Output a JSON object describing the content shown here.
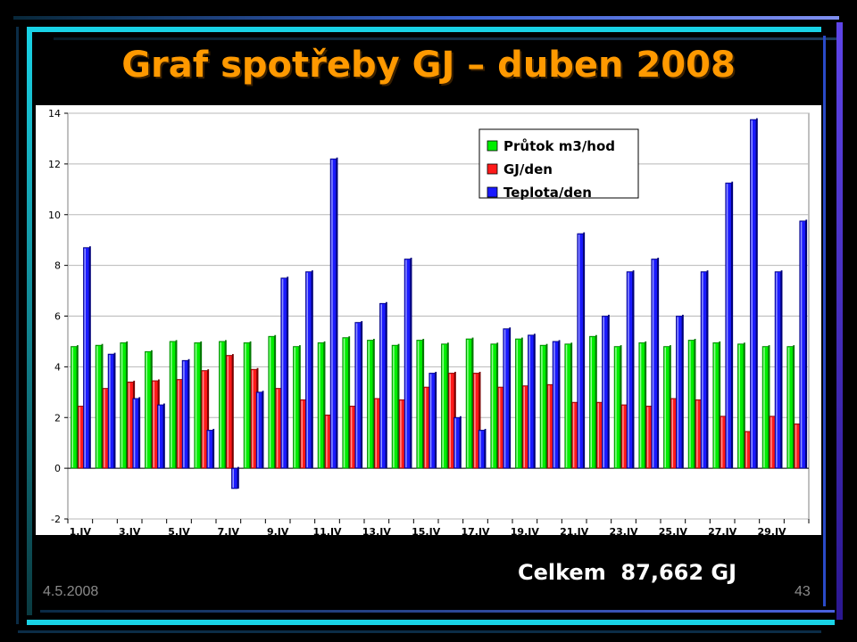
{
  "slide": {
    "title": "Graf spotřeby GJ – duben 2008",
    "total": "Celkem  87,662 GJ",
    "date": "4.5.2008",
    "page_number": "43"
  },
  "chart_data": {
    "type": "bar",
    "ylim": [
      -2,
      14
    ],
    "yticks": [
      -2,
      0,
      2,
      4,
      6,
      8,
      10,
      12,
      14
    ],
    "grid": true,
    "legend_position": "top-right",
    "x_tick_labels": [
      "1.IV",
      "3.IV",
      "5.IV",
      "7.IV",
      "9.IV",
      "11.IV",
      "13.IV",
      "15.IV",
      "17.IV",
      "19.IV",
      "21.IV",
      "23.IV",
      "25.IV",
      "27.IV",
      "29.IV"
    ],
    "categories": [
      "1.IV",
      "2.IV",
      "3.IV",
      "4.IV",
      "5.IV",
      "6.IV",
      "7.IV",
      "8.IV",
      "9.IV",
      "10.IV",
      "11.IV",
      "12.IV",
      "13.IV",
      "14.IV",
      "15.IV",
      "16.IV",
      "17.IV",
      "18.IV",
      "19.IV",
      "20.IV",
      "21.IV",
      "22.IV",
      "23.IV",
      "24.IV",
      "25.IV",
      "26.IV",
      "27.IV",
      "28.IV",
      "29.IV",
      "30.IV"
    ],
    "series": [
      {
        "name": "Průtok m3/hod",
        "color": "#00ee00",
        "values": [
          4.8,
          4.85,
          4.95,
          4.6,
          5.0,
          4.95,
          5.0,
          4.95,
          5.2,
          4.8,
          4.95,
          5.15,
          5.05,
          4.85,
          5.05,
          4.9,
          5.1,
          4.9,
          5.1,
          4.85,
          4.9,
          5.2,
          4.8,
          4.95,
          4.8,
          5.05,
          4.95,
          4.9,
          4.8,
          4.8
        ]
      },
      {
        "name": "GJ/den",
        "color": "#ff1a1a",
        "values": [
          2.45,
          3.15,
          3.4,
          3.45,
          3.5,
          3.85,
          4.45,
          3.9,
          3.15,
          2.7,
          2.1,
          2.45,
          2.75,
          2.7,
          3.2,
          3.75,
          3.75,
          3.2,
          3.25,
          3.3,
          2.6,
          2.6,
          2.5,
          2.45,
          2.75,
          2.7,
          2.05,
          1.45,
          2.05,
          1.75
        ]
      },
      {
        "name": "Teplota/den",
        "color": "#1a1aff",
        "values": [
          8.7,
          4.5,
          2.75,
          2.5,
          4.25,
          1.5,
          -0.8,
          3.0,
          7.5,
          7.75,
          12.2,
          5.75,
          6.5,
          8.25,
          3.75,
          2.0,
          1.5,
          5.5,
          5.25,
          5.0,
          9.25,
          6.0,
          7.75,
          8.25,
          6.0,
          7.75,
          11.25,
          13.75,
          7.75,
          9.75
        ]
      }
    ]
  }
}
